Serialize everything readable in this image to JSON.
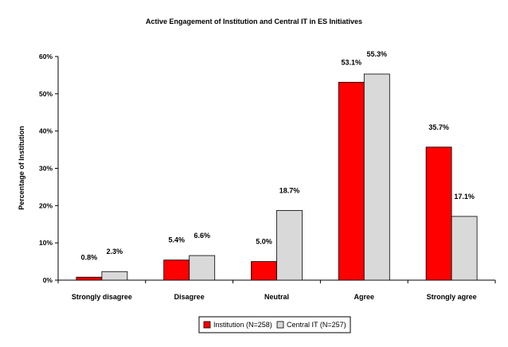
{
  "chart_data": {
    "type": "bar",
    "title": "Active Engagement of Institution and Central IT in ES Initiatives",
    "xlabel": "",
    "ylabel": "Percentage of Institution",
    "categories": [
      "Strongly disagree",
      "Disagree",
      "Neutral",
      "Agree",
      "Strongly agree"
    ],
    "series": [
      {
        "name": "Institution (N=258)",
        "color": "#ff0000",
        "values": [
          0.8,
          5.4,
          5.0,
          53.1,
          35.7
        ],
        "labels": [
          "0.8%",
          "5.4%",
          "5.0%",
          "53.1%",
          "35.7%"
        ]
      },
      {
        "name": "Central IT (N=257)",
        "color": "#d9d9d9",
        "values": [
          2.3,
          6.6,
          18.7,
          55.3,
          17.1
        ],
        "labels": [
          "2.3%",
          "6.6%",
          "18.7%",
          "55.3%",
          "17.1%"
        ]
      }
    ],
    "ylim": [
      0,
      60
    ],
    "yticks": [
      0,
      10,
      20,
      30,
      40,
      50,
      60
    ],
    "ytick_labels": [
      "0%",
      "10%",
      "20%",
      "30%",
      "40%",
      "50%",
      "60%"
    ],
    "grid": false,
    "legend_position": "bottom-center"
  }
}
